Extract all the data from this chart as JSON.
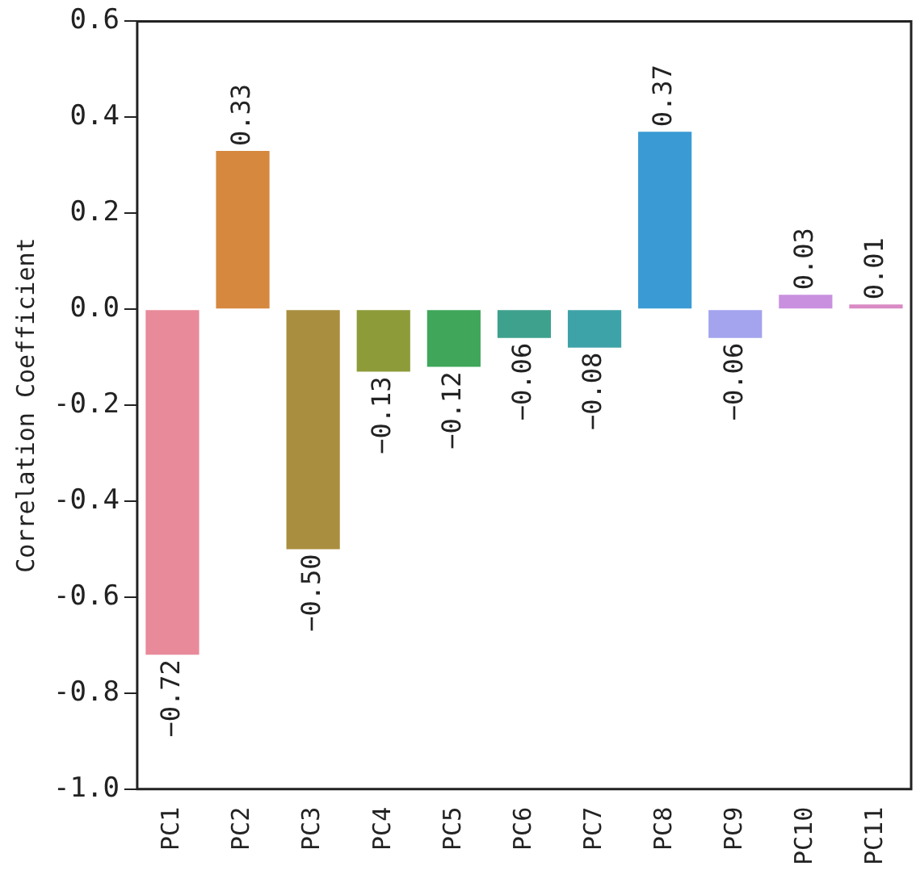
{
  "chart_data": {
    "type": "bar",
    "ylabel": "Correlation Coefficient",
    "categories": [
      "PC1",
      "PC2",
      "PC3",
      "PC4",
      "PC5",
      "PC6",
      "PC7",
      "PC8",
      "PC9",
      "PC10",
      "PC11"
    ],
    "values": [
      -0.72,
      0.33,
      -0.5,
      -0.13,
      -0.12,
      -0.06,
      -0.08,
      0.37,
      -0.06,
      0.03,
      0.01
    ],
    "value_labels": [
      "−0.72",
      "0.33",
      "−0.50",
      "−0.13",
      "−0.12",
      "−0.06",
      "−0.08",
      "0.37",
      "−0.06",
      "0.03",
      "0.01"
    ],
    "colors": [
      "#e88a9a",
      "#d6883f",
      "#a88e3e",
      "#8d9b39",
      "#3fa65a",
      "#3ea18d",
      "#3ea3a8",
      "#3a9bd4",
      "#a3a3ee",
      "#c990e0",
      "#d98ac4"
    ],
    "ylim": [
      -1.0,
      0.6
    ],
    "yticks": [
      0.6,
      0.4,
      0.2,
      {
        "value": 0,
        "label": "0.0"
      },
      -0.2,
      -0.4,
      -0.6,
      -0.8,
      {
        "value": -1,
        "label": "-1.0"
      }
    ],
    "grid": false,
    "legend": false
  }
}
